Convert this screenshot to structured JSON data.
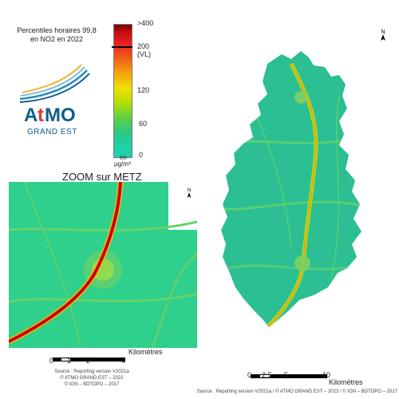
{
  "title": {
    "line1": "Percentiles horaires 99,8",
    "line2": "en NO2 en 2022"
  },
  "logo": {
    "brand": "AtMO",
    "subtitle": "GRAND EST",
    "colors": {
      "text": "#0c5e8c",
      "accent": "#e23a3a"
    }
  },
  "legend": {
    "labels": {
      "max": ">400",
      "vl_value": "200",
      "vl": "(VL)",
      "mid": "120",
      "low": "60",
      "zero": "0",
      "unit1": "en",
      "unit2": "µg/m³"
    }
  },
  "zoom": {
    "title": "ZOOM sur METZ"
  },
  "north_arrow": "N",
  "scale_zoom": {
    "ticks": [
      "0",
      "1",
      "2",
      "4"
    ],
    "unit": "Kilomètres"
  },
  "scale_main": {
    "ticks": [
      "0",
      "2.5",
      "5",
      "10"
    ],
    "unit": "Kilomètres"
  },
  "source_zoom": [
    "Source : Reporting version V2021a",
    "© ATMO GRAND EST – 2022",
    "© IGN – BDTOPO – 2017"
  ],
  "source_main": "Source : Reporting version V2021a / © ATMO GRAND EST – 2023 / © IGN – BDTOPO – 2017"
}
